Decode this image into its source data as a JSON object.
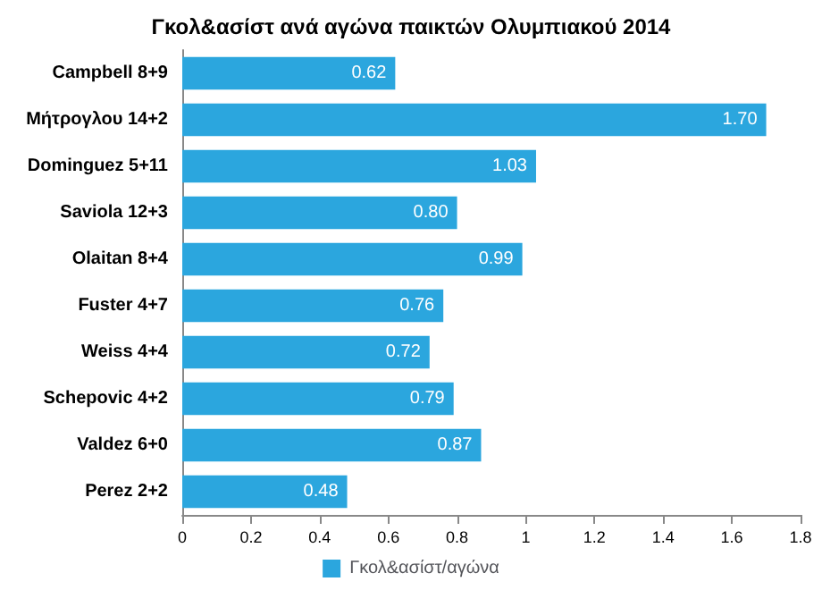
{
  "chart_data": {
    "type": "bar",
    "orientation": "horizontal",
    "title": "Γκολ&ασίστ ανά αγώνα παικτών Ολυμπιακού 2014",
    "categories": [
      "Campbell 8+9",
      "Μήτρογλου 14+2",
      "Dominguez 5+11",
      "Saviola 12+3",
      "Olaitan 8+4",
      "Fuster 4+7",
      "Weiss 4+4",
      "Schepovic 4+2",
      "Valdez 6+0",
      "Perez 2+2"
    ],
    "series": [
      {
        "name": "Γκολ&ασίστ/αγώνα",
        "color": "#2ba6de",
        "values": [
          0.62,
          1.7,
          1.03,
          0.8,
          0.99,
          0.76,
          0.72,
          0.79,
          0.87,
          0.48
        ],
        "value_labels": [
          "0.62",
          "1.70",
          "1.03",
          "0.80",
          "0.99",
          "0.76",
          "0.72",
          "0.79",
          "0.87",
          "0.48"
        ]
      }
    ],
    "xlim": [
      0,
      1.8
    ],
    "xticks": [
      0,
      0.2,
      0.4,
      0.6,
      0.8,
      1,
      1.2,
      1.4,
      1.6,
      1.8
    ],
    "grid": false,
    "legend": "bottom"
  }
}
